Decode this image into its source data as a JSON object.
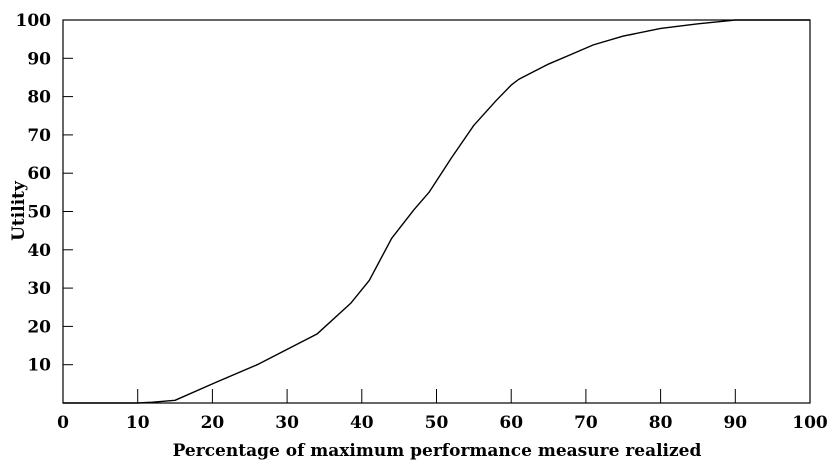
{
  "chart_data": {
    "type": "line",
    "title": "",
    "xlabel": "Percentage of maximum performance measure realized",
    "ylabel": "Utility",
    "xlim": [
      0,
      100
    ],
    "ylim": [
      0,
      100
    ],
    "x_ticks": [
      0,
      10,
      20,
      30,
      40,
      50,
      60,
      70,
      80,
      90,
      100
    ],
    "y_ticks": [
      10,
      20,
      30,
      40,
      50,
      60,
      70,
      80,
      90,
      100
    ],
    "x_tick_labels": [
      "0",
      "10",
      "20",
      "30",
      "40",
      "50",
      "60",
      "70",
      "80",
      "90",
      "100"
    ],
    "y_tick_labels": [
      "10",
      "20",
      "30",
      "40",
      "50",
      "60",
      "70",
      "80",
      "90",
      "100"
    ],
    "grid": false,
    "legend": "none",
    "line_color": "#000000",
    "series": [
      {
        "x": [
          0,
          5,
          10,
          12,
          15,
          20,
          26,
          30,
          34,
          38.5,
          41,
          44,
          47,
          49,
          52,
          55,
          58,
          60,
          61,
          62,
          65,
          68,
          71,
          75,
          80,
          85,
          88,
          90,
          93,
          95,
          100
        ],
        "y": [
          0,
          0,
          0,
          0.2,
          0.7,
          5,
          10,
          14,
          18,
          26,
          32,
          43,
          50.5,
          55,
          64,
          72.5,
          79,
          83,
          84.5,
          85.5,
          88.5,
          91,
          93.5,
          95.8,
          97.8,
          99,
          99.6,
          100,
          100,
          100,
          100
        ]
      }
    ]
  }
}
